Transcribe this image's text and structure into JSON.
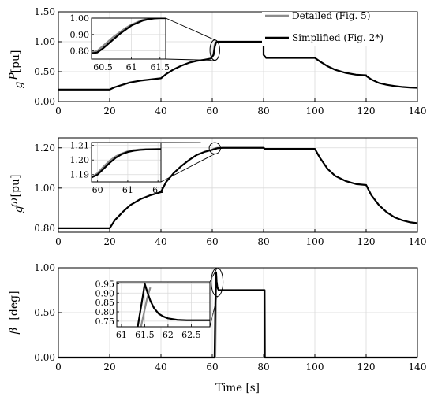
{
  "chart_data": [
    {
      "type": "line",
      "id": "pg",
      "ylabel": "P_g [pu]",
      "ylabel_main": "P",
      "ylabel_sub": "g",
      "ylabel_unit": "[pu]",
      "xlim": [
        0,
        140
      ],
      "ylim": [
        0,
        1.5
      ],
      "xticks": [
        0,
        20,
        40,
        60,
        80,
        100,
        120,
        140
      ],
      "yticks": [
        0.0,
        0.5,
        1.0,
        1.5
      ],
      "ytick_labels": [
        "0.00",
        "0.50",
        "1.00",
        "1.50"
      ],
      "legend": {
        "placement": "top-right",
        "entries": [
          "Detailed (Fig. 5)",
          "Simplified (Fig. 2*)"
        ]
      },
      "series": [
        {
          "name": "Simplified (Fig. 2*)",
          "color": "#000000",
          "x": [
            0,
            20,
            22,
            25,
            28,
            32,
            36,
            40,
            42,
            45,
            48,
            51,
            54,
            57,
            59.5,
            60.5,
            61,
            61.5,
            62,
            80,
            80.001,
            81,
            100,
            102,
            105,
            108,
            112,
            116,
            120,
            120.001,
            122,
            125,
            128,
            131,
            134,
            137,
            140
          ],
          "y": [
            0.2,
            0.2,
            0.24,
            0.28,
            0.32,
            0.35,
            0.37,
            0.39,
            0.46,
            0.54,
            0.6,
            0.65,
            0.68,
            0.7,
            0.72,
            0.78,
            0.92,
            0.99,
            1.0,
            1.0,
            0.78,
            0.73,
            0.73,
            0.67,
            0.59,
            0.53,
            0.48,
            0.45,
            0.44,
            0.43,
            0.37,
            0.31,
            0.28,
            0.26,
            0.245,
            0.235,
            0.23
          ]
        },
        {
          "name": "Detailed (Fig. 5)",
          "color": "#8c8c8c",
          "x": [
            59.5,
            60.5,
            60.9,
            61.4,
            62
          ],
          "y": [
            0.72,
            0.8,
            0.95,
            0.995,
            1.0
          ]
        }
      ],
      "inset": {
        "xlim": [
          60.3,
          61.6
        ],
        "ylim": [
          0.75,
          1.0
        ],
        "xticks": [
          60.5,
          61,
          61.5
        ],
        "xtick_labels": [
          "60.5",
          "61",
          "61.5"
        ],
        "yticks": [
          0.8,
          0.9,
          1.0
        ],
        "ytick_labels": [
          "0.80",
          "0.90",
          "1.00"
        ],
        "series": [
          {
            "name": "Detailed (Fig. 5)",
            "color": "#8c8c8c",
            "x": [
              60.3,
              60.4,
              60.5,
              60.6,
              60.7,
              60.8,
              60.9,
              61.0,
              61.1,
              61.2,
              61.3,
              61.4,
              61.5,
              61.6
            ],
            "y": [
              0.79,
              0.8,
              0.83,
              0.86,
              0.89,
              0.915,
              0.94,
              0.96,
              0.975,
              0.99,
              0.995,
              1.0,
              1.0,
              1.0
            ]
          },
          {
            "name": "Simplified (Fig. 2*)",
            "color": "#000000",
            "x": [
              60.3,
              60.4,
              60.5,
              60.6,
              60.7,
              60.8,
              60.9,
              61.0,
              61.1,
              61.2,
              61.3,
              61.4,
              61.5,
              61.6
            ],
            "y": [
              0.785,
              0.79,
              0.815,
              0.845,
              0.875,
              0.905,
              0.93,
              0.955,
              0.97,
              0.985,
              0.993,
              0.998,
              1.0,
              1.0
            ]
          }
        ]
      }
    },
    {
      "type": "line",
      "id": "wg",
      "ylabel": "ω_g [pu]",
      "ylabel_main": "ω",
      "ylabel_sub": "g",
      "ylabel_unit": "[pu]",
      "xlim": [
        0,
        140
      ],
      "ylim": [
        0.78,
        1.25
      ],
      "xticks": [
        0,
        20,
        40,
        60,
        80,
        100,
        120,
        140
      ],
      "yticks": [
        0.8,
        1.0,
        1.2
      ],
      "ytick_labels": [
        "0.80",
        "1.00",
        "1.20"
      ],
      "series": [
        {
          "name": "Simplified (Fig. 2*)",
          "color": "#000000",
          "x": [
            0,
            20,
            22,
            25,
            28,
            32,
            36,
            40,
            42,
            45,
            48,
            51,
            54,
            57,
            60,
            62,
            64,
            80,
            80.5,
            100,
            102,
            105,
            108,
            112,
            116,
            120,
            122,
            125,
            128,
            131,
            134,
            137,
            140
          ],
          "y": [
            0.8,
            0.8,
            0.84,
            0.88,
            0.915,
            0.945,
            0.965,
            0.98,
            1.03,
            1.075,
            1.11,
            1.14,
            1.165,
            1.18,
            1.19,
            1.198,
            1.2,
            1.2,
            1.195,
            1.195,
            1.15,
            1.095,
            1.06,
            1.035,
            1.02,
            1.015,
            0.965,
            0.915,
            0.88,
            0.855,
            0.84,
            0.83,
            0.825
          ]
        },
        {
          "name": "Detailed (Fig. 5)",
          "color": "#8c8c8c",
          "x": [
            59.5,
            60.5,
            61.5,
            62.5
          ],
          "y": [
            1.188,
            1.195,
            1.199,
            1.2
          ]
        }
      ],
      "inset": {
        "xlim": [
          59.8,
          62.1
        ],
        "ylim": [
          1.185,
          1.212
        ],
        "xticks": [
          60,
          61,
          62
        ],
        "xtick_labels": [
          "60",
          "61",
          "62"
        ],
        "yticks": [
          1.19,
          1.2,
          1.21
        ],
        "ytick_labels": [
          "1.19",
          "1.20",
          "1.21"
        ],
        "series": [
          {
            "name": "Detailed (Fig. 5)",
            "color": "#8c8c8c",
            "x": [
              59.8,
              60.0,
              60.2,
              60.4,
              60.6,
              60.8,
              61.0,
              61.2,
              61.4,
              61.6,
              61.8,
              62.0,
              62.1
            ],
            "y": [
              1.188,
              1.191,
              1.1955,
              1.1995,
              1.2025,
              1.2045,
              1.206,
              1.2068,
              1.2072,
              1.2074,
              1.2075,
              1.2075,
              1.2075
            ]
          },
          {
            "name": "Simplified (Fig. 2*)",
            "color": "#000000",
            "x": [
              59.8,
              60.0,
              60.2,
              60.4,
              60.6,
              60.8,
              61.0,
              61.2,
              61.4,
              61.6,
              61.8,
              62.0,
              62.1
            ],
            "y": [
              1.188,
              1.19,
              1.194,
              1.198,
              1.2015,
              1.204,
              1.2055,
              1.2064,
              1.2069,
              1.2072,
              1.2073,
              1.2074,
              1.2074
            ]
          }
        ]
      }
    },
    {
      "type": "line",
      "id": "beta",
      "ylabel": "β [deg]",
      "ylabel_main": "β",
      "ylabel_sub": "",
      "ylabel_unit": "[deg]",
      "xlabel": "Time [s]",
      "xlim": [
        0,
        140
      ],
      "ylim": [
        0,
        1.0
      ],
      "xticks": [
        0,
        20,
        40,
        60,
        80,
        100,
        120,
        140
      ],
      "yticks": [
        0.0,
        0.5,
        1.0
      ],
      "ytick_labels": [
        "0.00",
        "0.50",
        "1.00"
      ],
      "series": [
        {
          "name": "Simplified (Fig. 2*)",
          "color": "#000000",
          "x": [
            0,
            60.9,
            61.2,
            61.5,
            61.7,
            62.0,
            62.5,
            80,
            80.4,
            80.5,
            140
          ],
          "y": [
            0,
            0,
            0.6,
            0.95,
            0.85,
            0.78,
            0.75,
            0.75,
            0.75,
            0,
            0
          ]
        },
        {
          "name": "Detailed (Fig. 5)",
          "color": "#8c8c8c",
          "x": [
            61.2,
            61.4,
            61.55
          ],
          "y": [
            0,
            0.5,
            0.9
          ]
        }
      ],
      "inset": {
        "xlim": [
          60.9,
          62.9
        ],
        "ylim": [
          0.72,
          0.96
        ],
        "xticks": [
          61,
          61.5,
          62,
          62.5
        ],
        "xtick_labels": [
          "61",
          "61.5",
          "62",
          "62.5"
        ],
        "yticks": [
          0.75,
          0.8,
          0.85,
          0.9,
          0.95
        ],
        "ytick_labels": [
          "0.75",
          "0.80",
          "0.85",
          "0.90",
          "0.95"
        ],
        "series": [
          {
            "name": "Detailed (Fig. 5)",
            "color": "#8c8c8c",
            "x": [
              61.42,
              61.55,
              61.62
            ],
            "y": [
              0.72,
              0.87,
              0.93
            ]
          },
          {
            "name": "Simplified (Fig. 2*)",
            "color": "#000000",
            "x": [
              61.35,
              61.47,
              61.5,
              61.55,
              61.62,
              61.7,
              61.8,
              61.9,
              62.0,
              62.2,
              62.4,
              62.6,
              62.9
            ],
            "y": [
              0.72,
              0.9,
              0.95,
              0.91,
              0.86,
              0.82,
              0.79,
              0.775,
              0.765,
              0.757,
              0.755,
              0.755,
              0.755
            ]
          }
        ]
      }
    }
  ]
}
